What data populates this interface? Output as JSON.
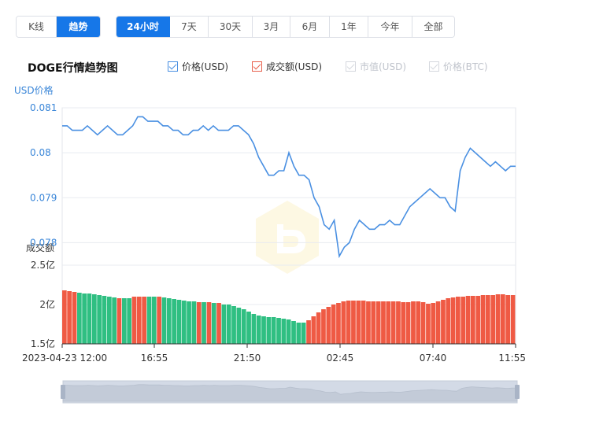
{
  "chart_type_tabs": [
    {
      "label": "K线",
      "active": false
    },
    {
      "label": "趋势",
      "active": true
    }
  ],
  "range_tabs": [
    {
      "label": "24小时",
      "active": true
    },
    {
      "label": "7天",
      "active": false
    },
    {
      "label": "30天",
      "active": false
    },
    {
      "label": "3月",
      "active": false
    },
    {
      "label": "6月",
      "active": false
    },
    {
      "label": "1年",
      "active": false
    },
    {
      "label": "今年",
      "active": false
    },
    {
      "label": "全部",
      "active": false
    }
  ],
  "legend": [
    {
      "label": "价格(USD)",
      "enabled": true,
      "color": "#4a90e2"
    },
    {
      "label": "成交额(USD)",
      "enabled": true,
      "color": "#e8604c"
    },
    {
      "label": "市值(USD)",
      "enabled": false,
      "color": "#c0c4cc"
    },
    {
      "label": "价格(BTC)",
      "enabled": false,
      "color": "#c0c4cc"
    }
  ],
  "colors": {
    "price_line": "#4a90e2",
    "volume_up": "#ef5a44",
    "volume_down": "#2fbf82",
    "axis_label": "#3a86d8",
    "grid": "#e8ebf0",
    "slider_fill": "#d3dae6"
  },
  "chart_data": {
    "type": "line",
    "title": "DOGE行情趋势图",
    "price_axis_label": "USD价格",
    "volume_axis_label": "成交额",
    "price_ylim": [
      0.0775,
      0.081
    ],
    "price_yticks": [
      "0.081",
      "0.08",
      "0.079",
      "0.078"
    ],
    "volume_ylim": [
      1.5,
      2.5
    ],
    "volume_yticks": [
      "2.5亿",
      "2亿",
      "1.5亿"
    ],
    "x_tick_labels": [
      "2023-04-23 12:00",
      "16:55",
      "21:50",
      "02:45",
      "07:40",
      "11:55"
    ],
    "price_series": {
      "name": "价格(USD)",
      "values": [
        0.0806,
        0.0806,
        0.0805,
        0.0805,
        0.0805,
        0.0806,
        0.0805,
        0.0804,
        0.0805,
        0.0806,
        0.0805,
        0.0804,
        0.0804,
        0.0805,
        0.0806,
        0.0808,
        0.0808,
        0.0807,
        0.0807,
        0.0807,
        0.0806,
        0.0806,
        0.0805,
        0.0805,
        0.0804,
        0.0804,
        0.0805,
        0.0805,
        0.0806,
        0.0805,
        0.0806,
        0.0805,
        0.0805,
        0.0805,
        0.0806,
        0.0806,
        0.0805,
        0.0804,
        0.0802,
        0.0799,
        0.0797,
        0.0795,
        0.0795,
        0.0796,
        0.0796,
        0.08,
        0.0797,
        0.0795,
        0.0795,
        0.0794,
        0.079,
        0.0788,
        0.0784,
        0.0783,
        0.0785,
        0.0777,
        0.0779,
        0.078,
        0.0783,
        0.0785,
        0.0784,
        0.0783,
        0.0783,
        0.0784,
        0.0784,
        0.0785,
        0.0784,
        0.0784,
        0.0786,
        0.0788,
        0.0789,
        0.079,
        0.0791,
        0.0792,
        0.0791,
        0.079,
        0.079,
        0.0788,
        0.0787,
        0.0796,
        0.0799,
        0.0801,
        0.08,
        0.0799,
        0.0798,
        0.0797,
        0.0798,
        0.0797,
        0.0796,
        0.0797,
        0.0797
      ]
    },
    "volume_series": {
      "name": "成交额(USD)",
      "values": [
        2.18,
        2.17,
        2.16,
        2.15,
        2.14,
        2.14,
        2.13,
        2.12,
        2.11,
        2.1,
        2.09,
        2.08,
        2.08,
        2.08,
        2.1,
        2.1,
        2.1,
        2.1,
        2.1,
        2.1,
        2.09,
        2.08,
        2.07,
        2.06,
        2.05,
        2.04,
        2.04,
        2.03,
        2.03,
        2.03,
        2.02,
        2.02,
        2.0,
        2.0,
        1.98,
        1.96,
        1.94,
        1.91,
        1.88,
        1.86,
        1.85,
        1.84,
        1.84,
        1.83,
        1.82,
        1.81,
        1.79,
        1.77,
        1.77,
        1.8,
        1.85,
        1.9,
        1.94,
        1.97,
        2.0,
        2.02,
        2.04,
        2.05,
        2.05,
        2.05,
        2.05,
        2.04,
        2.04,
        2.04,
        2.04,
        2.04,
        2.04,
        2.04,
        2.03,
        2.03,
        2.04,
        2.04,
        2.03,
        2.01,
        2.02,
        2.04,
        2.06,
        2.08,
        2.09,
        2.1,
        2.1,
        2.11,
        2.11,
        2.11,
        2.12,
        2.12,
        2.12,
        2.13,
        2.13,
        2.12,
        2.12
      ],
      "up": [
        true,
        true,
        true,
        false,
        false,
        false,
        false,
        false,
        false,
        false,
        false,
        true,
        false,
        false,
        true,
        true,
        true,
        false,
        false,
        true,
        false,
        false,
        false,
        false,
        false,
        false,
        false,
        true,
        false,
        true,
        false,
        true,
        false,
        false,
        false,
        false,
        false,
        false,
        false,
        false,
        false,
        false,
        false,
        false,
        false,
        false,
        false,
        false,
        false,
        true,
        true,
        true,
        true,
        true,
        true,
        true,
        true,
        true,
        true,
        true,
        true,
        true,
        true,
        true,
        true,
        true,
        true,
        true,
        true,
        true,
        true,
        true,
        true,
        true,
        true,
        true,
        true,
        true,
        true,
        true,
        true,
        true,
        true,
        true,
        true,
        true,
        true,
        true,
        true,
        true,
        true
      ]
    }
  }
}
